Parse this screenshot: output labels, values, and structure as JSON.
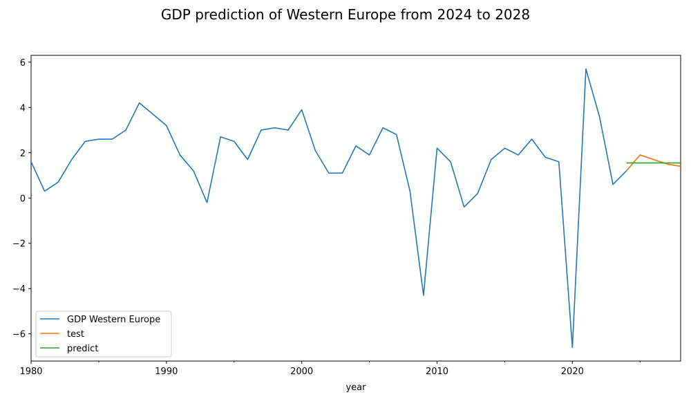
{
  "chart_data": {
    "type": "line",
    "title": "GDP prediction of Western Europe from 2024 to 2028",
    "xlabel": "year",
    "ylabel": "",
    "xlim": [
      1980,
      2028
    ],
    "ylim": [
      -7.2,
      6.3
    ],
    "xticks": [
      1980,
      1990,
      2000,
      2010,
      2020
    ],
    "yticks": [
      -6,
      -4,
      -2,
      0,
      2,
      4,
      6
    ],
    "grid": false,
    "legend_position": "lower-left",
    "series": [
      {
        "name": "GDP Western Europe",
        "color": "#1f77b4",
        "x": [
          1980,
          1981,
          1982,
          1983,
          1984,
          1985,
          1986,
          1987,
          1988,
          1989,
          1990,
          1991,
          1992,
          1993,
          1994,
          1995,
          1996,
          1997,
          1998,
          1999,
          2000,
          2001,
          2002,
          2003,
          2004,
          2005,
          2006,
          2007,
          2008,
          2009,
          2010,
          2011,
          2012,
          2013,
          2014,
          2015,
          2016,
          2017,
          2018,
          2019,
          2020,
          2021,
          2022,
          2023,
          2024,
          2025,
          2026,
          2027,
          2028
        ],
        "values": [
          1.6,
          0.3,
          0.7,
          1.7,
          2.5,
          2.6,
          2.6,
          3.0,
          4.2,
          3.7,
          3.2,
          1.9,
          1.2,
          -0.2,
          2.7,
          2.5,
          1.7,
          3.0,
          3.1,
          3.0,
          3.9,
          2.1,
          1.1,
          1.1,
          2.3,
          1.9,
          3.1,
          2.8,
          0.3,
          -4.3,
          2.2,
          1.6,
          -0.4,
          0.2,
          1.7,
          2.2,
          1.9,
          2.6,
          1.8,
          1.6,
          -6.6,
          5.7,
          3.6,
          0.6,
          1.2,
          1.9,
          1.7,
          1.5,
          1.4
        ]
      },
      {
        "name": "test",
        "color": "#ff7f0e",
        "x": [
          2024,
          2025,
          2026,
          2027,
          2028
        ],
        "values": [
          1.2,
          1.9,
          1.7,
          1.5,
          1.4
        ]
      },
      {
        "name": "predict",
        "color": "#2ca02c",
        "x": [
          2024,
          2025,
          2026,
          2027,
          2028
        ],
        "values": [
          1.55,
          1.55,
          1.55,
          1.55,
          1.55
        ]
      }
    ]
  }
}
